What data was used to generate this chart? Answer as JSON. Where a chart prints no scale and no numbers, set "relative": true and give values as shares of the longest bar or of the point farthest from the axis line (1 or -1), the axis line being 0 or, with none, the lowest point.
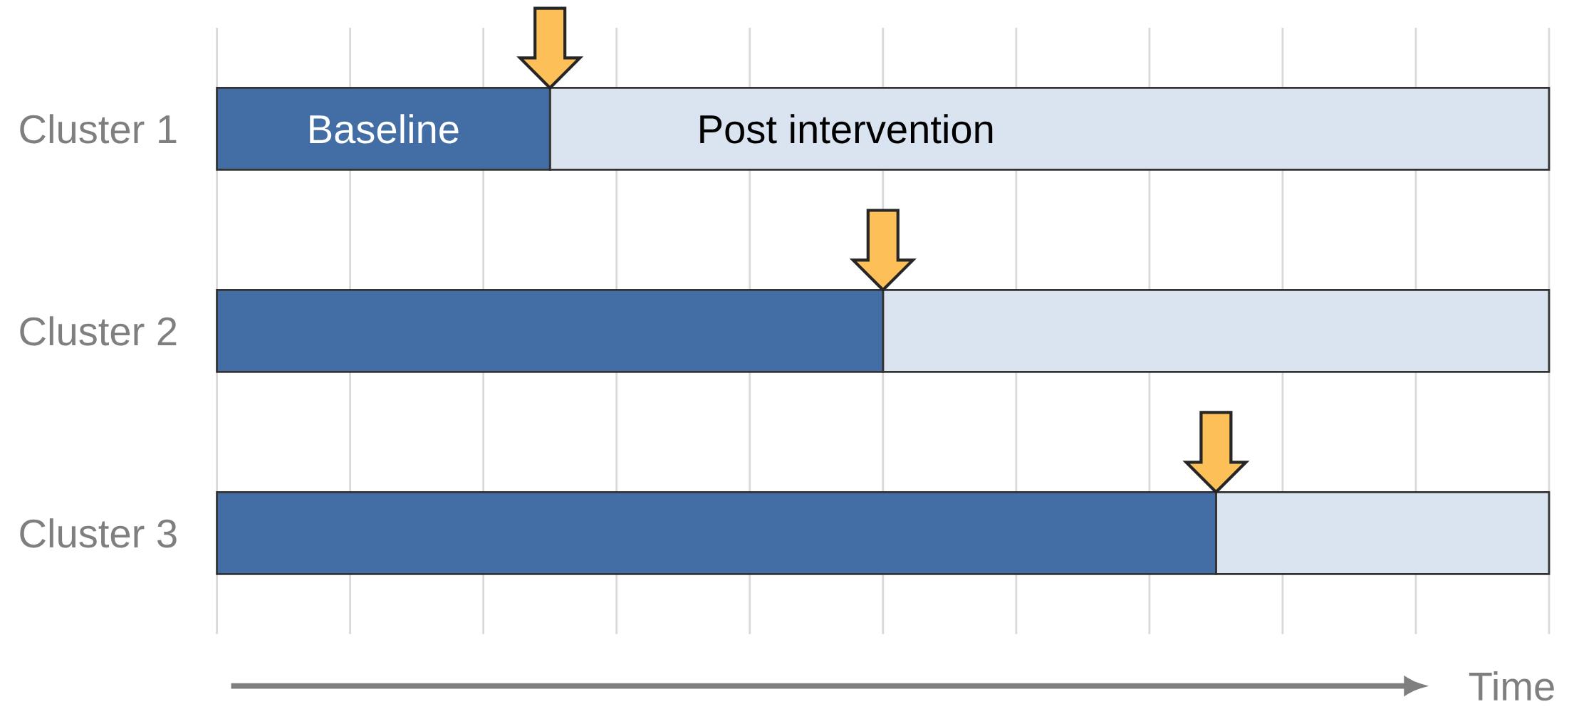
{
  "chart_data": {
    "type": "bar",
    "orientation": "horizontal",
    "stacked": true,
    "relative": true,
    "grid": "x",
    "xlabel": "Time",
    "categories": [
      "Cluster 1",
      "Cluster 2",
      "Cluster 3"
    ],
    "series": [
      {
        "name": "Baseline",
        "color": "#436da5",
        "values": [
          0.25,
          0.5,
          0.75
        ]
      },
      {
        "name": "Post intervention",
        "color": "#dae3f0",
        "values": [
          0.75,
          0.5,
          0.25
        ]
      }
    ]
  }
}
